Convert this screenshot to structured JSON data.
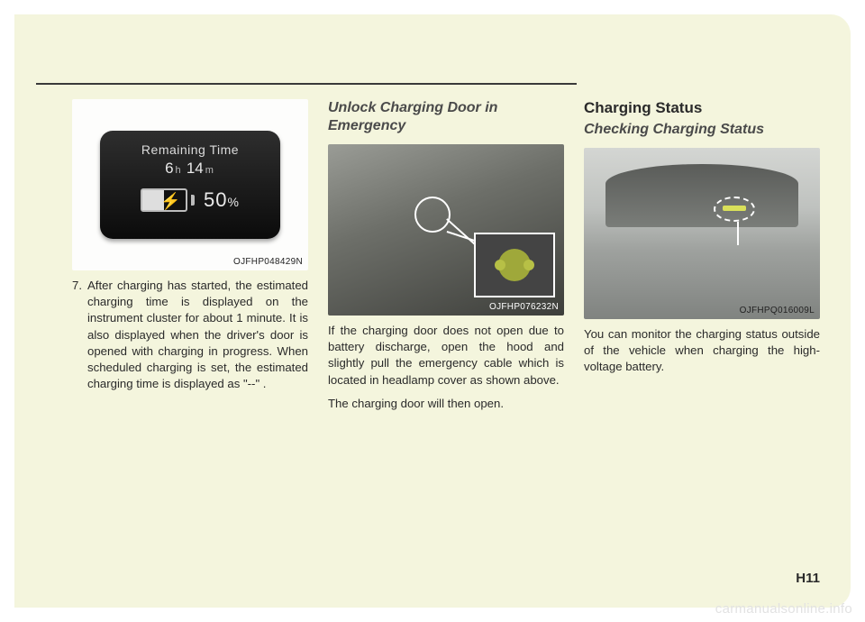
{
  "page": {
    "number": "H11",
    "watermark": "carmanualsonline.info",
    "background_color": "#f4f5dd"
  },
  "col1": {
    "figure": {
      "caption": "OJFHP048429N",
      "dash": {
        "title": "Remaining Time",
        "hours": "6",
        "hours_unit": "h",
        "minutes": "14",
        "minutes_unit": "m",
        "percent": "50",
        "percent_symbol": "%",
        "fill_pct": 50
      }
    },
    "step_number": "7.",
    "step_text": "After charging has started, the estimated charging time is displayed on the instrument cluster for about 1 minute. It is also displayed when the driver's door is opened with charging in progress. When scheduled charging is set, the estimated charging time is displayed as \"--\" ."
  },
  "col2": {
    "heading": "Unlock Charging Door in Emergency",
    "figure": {
      "caption": "OJFHP076232N"
    },
    "para1": "If the charging door does not open due to battery discharge, open the hood and slightly pull the emergency cable which is located in headlamp cover as shown above.",
    "para2": "The charging door will then open."
  },
  "col3": {
    "heading_bold": "Charging Status",
    "heading_italic": "Checking Charging Status",
    "figure": {
      "caption": "OJFHPQ016009L"
    },
    "para": "You can monitor the charging status outside of the vehicle when charging the high-voltage battery."
  }
}
